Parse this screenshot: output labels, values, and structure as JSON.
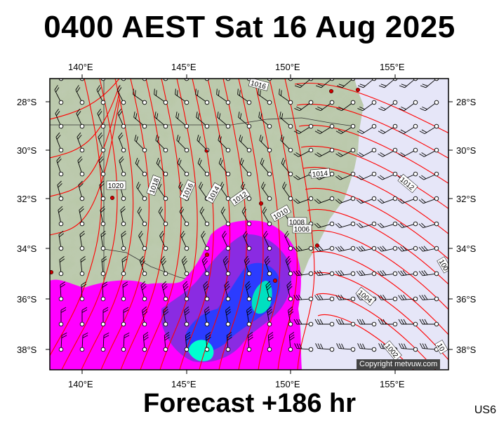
{
  "title": "0400 AEST Sat 16 Aug 2025",
  "forecast_label": "Forecast +186 hr",
  "region_code": "US6",
  "copyright": "Copyright metvuw.com",
  "axes": {
    "longitude_top": [
      "140°E",
      "145°E",
      "150°E",
      "155°E"
    ],
    "longitude_bottom": [
      "140°E",
      "145°E",
      "150°E",
      "155°E"
    ],
    "latitude_left": [
      "28°S",
      "30°S",
      "32°S",
      "34°S",
      "36°S",
      "38°S"
    ],
    "latitude_right": [
      "28°S",
      "30°S",
      "32°S",
      "34°S",
      "36°S",
      "38°S"
    ]
  },
  "isobar_labels": [
    "1016",
    "1014",
    "1020",
    "1018",
    "1016",
    "1014",
    "1012",
    "1012",
    "1010",
    "1008",
    "1006",
    "1004",
    "1002",
    "100",
    "10"
  ],
  "colors": {
    "land": "#b9c8a8",
    "ocean": "#e6e6f8",
    "isobar": "#ff0000",
    "rain_light": "#ff00ff",
    "rain_moderate": "#8a2be2",
    "rain_heavy": "#1e3cff",
    "rain_intense": "#00ffd0"
  }
}
